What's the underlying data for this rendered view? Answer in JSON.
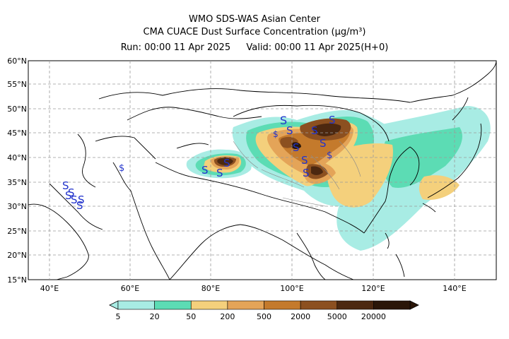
{
  "header": {
    "center": "WMO SDS-WAS Asian Center",
    "product": "CMA CUACE Dust Surface Concentration",
    "unit": "(μg/m³)",
    "run": "Run: 00:00 11 Apr 2025",
    "valid": "Valid: 00:00 11 Apr 2025(H+0)"
  },
  "map": {
    "lat_labels": [
      "60°N",
      "55°N",
      "50°N",
      "45°N",
      "40°N",
      "35°N",
      "30°N",
      "25°N",
      "20°N",
      "15°N"
    ],
    "lon_labels": [
      "40°E",
      "60°E",
      "80°E",
      "100°E",
      "120°E",
      "140°E"
    ],
    "station_symbol": "S",
    "dollar_symbol": "$"
  },
  "legend": {
    "levels": [
      "5",
      "20",
      "50",
      "200",
      "500",
      "2000",
      "5000",
      "20000"
    ],
    "colors": [
      "#a8ece4",
      "#5cdcb4",
      "#f4d07c",
      "#e4a458",
      "#c47a2c",
      "#8c5020",
      "#4c2810",
      "#2a1608"
    ]
  }
}
